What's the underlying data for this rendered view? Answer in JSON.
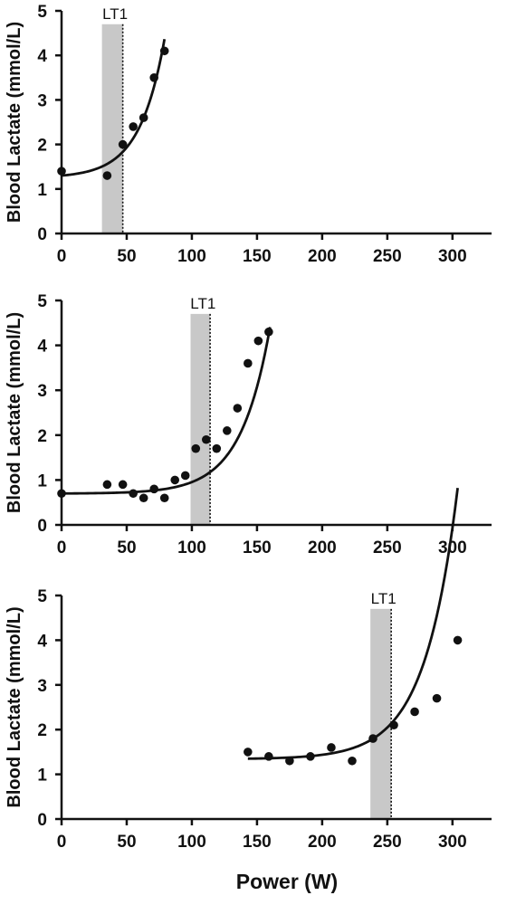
{
  "chart_data": [
    {
      "type": "scatter",
      "title": "",
      "xlabel": "",
      "ylabel": "Blood Lactate (mmol/L)",
      "xlim": [
        0,
        330
      ],
      "ylim": [
        0,
        5
      ],
      "xticks": [
        0,
        50,
        100,
        150,
        200,
        250,
        300
      ],
      "yticks": [
        0,
        1,
        2,
        3,
        4,
        5
      ],
      "grid": false,
      "series": [
        {
          "x": [
            0,
            35,
            47,
            55,
            63,
            71,
            79
          ],
          "y": [
            1.4,
            1.3,
            2.0,
            2.4,
            2.6,
            3.5,
            4.1
          ]
        }
      ],
      "fit_curve": {
        "a": 1.3,
        "b": 0.05,
        "k": 0.0523,
        "x_end": 79
      },
      "threshold": {
        "label": "LT1",
        "x": 47,
        "band": [
          31,
          47
        ]
      }
    },
    {
      "type": "scatter",
      "title": "",
      "xlabel": "",
      "ylabel": "Blood Lactate (mmol/L)",
      "xlim": [
        0,
        330
      ],
      "ylim": [
        0,
        5
      ],
      "xticks": [
        0,
        50,
        100,
        150,
        200,
        250,
        300
      ],
      "yticks": [
        0,
        1,
        2,
        3,
        4,
        5
      ],
      "grid": false,
      "series": [
        {
          "x": [
            0,
            35,
            47,
            55,
            63,
            71,
            79,
            87,
            95,
            103,
            111,
            119,
            127,
            135,
            143,
            151,
            159
          ],
          "y": [
            0.7,
            0.9,
            0.9,
            0.7,
            0.6,
            0.8,
            0.6,
            1.0,
            1.1,
            1.7,
            1.9,
            1.7,
            2.1,
            2.6,
            3.6,
            4.1,
            4.3
          ]
        }
      ],
      "fit_curve": {
        "a": 0.7,
        "b": 0.003,
        "k": 0.0445,
        "x_end": 160
      },
      "threshold": {
        "label": "LT1",
        "x": 114,
        "band": [
          99,
          114
        ]
      }
    },
    {
      "type": "scatter",
      "title": "",
      "xlabel": "Power (W)",
      "ylabel": "Blood Lactate (mmol/L)",
      "xlim": [
        0,
        330
      ],
      "ylim": [
        0,
        5
      ],
      "xticks": [
        0,
        50,
        100,
        150,
        200,
        250,
        300
      ],
      "yticks": [
        0,
        1,
        2,
        3,
        4,
        5
      ],
      "grid": false,
      "series": [
        {
          "x": [
            143,
            159,
            175,
            191,
            207,
            223,
            239,
            255,
            271,
            288,
            304
          ],
          "y": [
            1.5,
            1.4,
            1.3,
            1.4,
            1.6,
            1.3,
            1.8,
            2.1,
            2.4,
            2.7,
            4.0
          ]
        }
      ],
      "fit_curve": {
        "a": 1.35,
        "b": 0.01,
        "k": 0.0398,
        "x_start": 143,
        "x_end": 304,
        "x_offset": 143
      },
      "threshold": {
        "label": "LT1",
        "x": 253,
        "band": [
          237,
          253
        ]
      }
    }
  ]
}
